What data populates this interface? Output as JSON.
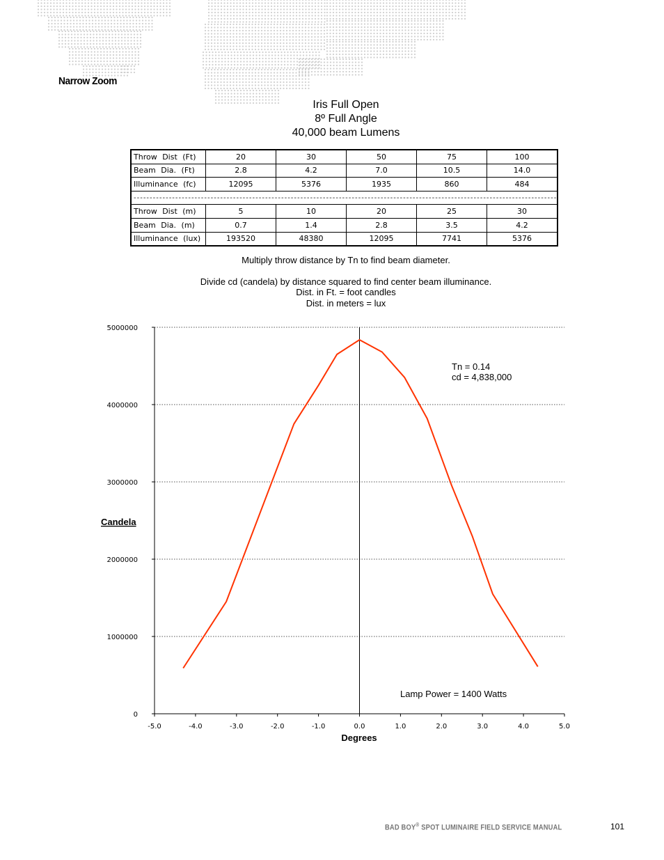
{
  "section_title": "Narrow Zoom",
  "headings": [
    "Iris Full Open",
    "8º Full Angle",
    "40,000 beam Lumens"
  ],
  "table": {
    "rows_ft": [
      {
        "label": "Throw Dist (Ft)",
        "values": [
          "20",
          "30",
          "50",
          "75",
          "100"
        ]
      },
      {
        "label": "Beam Dia. (Ft)",
        "values": [
          "2.8",
          "4.2",
          "7.0",
          "10.5",
          "14.0"
        ]
      },
      {
        "label": "Illuminance (fc)",
        "values": [
          "12095",
          "5376",
          "1935",
          "860",
          "484"
        ]
      }
    ],
    "separator": "-----------------------------------------------------------------------------------------------------------------------------------------------------------------------",
    "rows_m": [
      {
        "label": "Throw Dist (m)",
        "values": [
          "5",
          "10",
          "20",
          "25",
          "30"
        ]
      },
      {
        "label": "Beam Dia. (m)",
        "values": [
          "0.7",
          "1.4",
          "2.8",
          "3.5",
          "4.2"
        ]
      },
      {
        "label": "Illuminance (lux)",
        "values": [
          "193520",
          "48380",
          "12095",
          "7741",
          "5376"
        ]
      }
    ]
  },
  "notes": {
    "line1": "Multiply throw distance by Tn to find beam diameter.",
    "line2": "Divide cd (candela) by distance squared to find center beam illuminance.",
    "line3": "Dist. in Ft. = foot candles",
    "line4": "Dist. in meters = lux"
  },
  "chart_data": {
    "type": "line",
    "xlabel": "Degrees",
    "ylabel": "Candela",
    "xlim": [
      -5.0,
      5.0
    ],
    "ylim": [
      0,
      5000000
    ],
    "x_ticks": [
      "-5.0",
      "-4.0",
      "-3.0",
      "-2.0",
      "-1.0",
      "0.0",
      "1.0",
      "2.0",
      "3.0",
      "4.0",
      "5.0"
    ],
    "y_ticks": [
      "0",
      "1000000",
      "2000000",
      "3000000",
      "4000000",
      "5000000"
    ],
    "grid": "horizontal dotted",
    "series": [
      {
        "color": "#ff3300",
        "x": [
          -4.3,
          -3.25,
          -1.6,
          -1.0,
          -0.55,
          0.0,
          0.55,
          1.1,
          1.65,
          2.25,
          2.75,
          3.25,
          4.35
        ],
        "y": [
          590000,
          1450000,
          3750000,
          4250000,
          4650000,
          4838000,
          4680000,
          4350000,
          3820000,
          2950000,
          2300000,
          1550000,
          610000
        ]
      }
    ],
    "annotations": {
      "tn": "Tn = 0.14",
      "cd": "cd = 4,838,000",
      "lamp": "Lamp Power = 1400 Watts"
    }
  },
  "footer": {
    "manual_title_prefix": "BAD BOY",
    "reg_mark": "®",
    "manual_title_suffix": " SPOT LUMINAIRE FIELD SERVICE MANUAL",
    "page_number": "101"
  }
}
